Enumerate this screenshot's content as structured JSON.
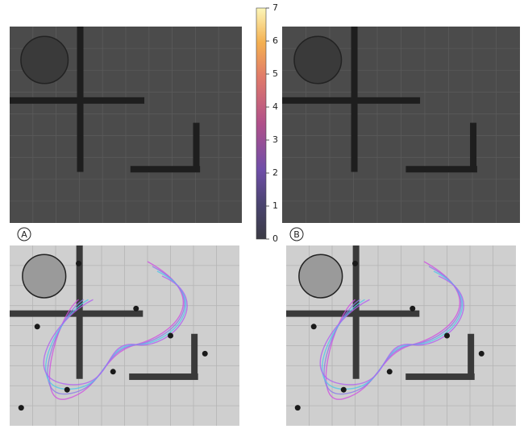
{
  "colorbar": {
    "lim": [
      0,
      7
    ],
    "ticks": [
      0,
      1,
      2,
      3,
      4,
      5,
      6,
      7
    ]
  },
  "panels": [
    {
      "label": "A"
    },
    {
      "label": "B"
    }
  ]
}
